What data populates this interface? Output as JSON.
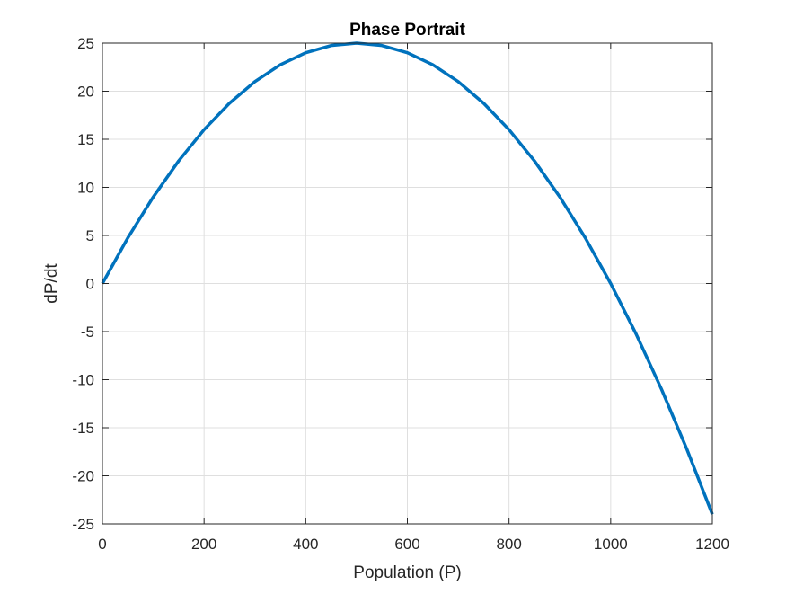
{
  "chart_data": {
    "type": "line",
    "title": "Phase Portrait",
    "xlabel": "Population (P)",
    "ylabel": "dP/dt",
    "xlim": [
      0,
      1200
    ],
    "ylim": [
      -25,
      25
    ],
    "x_ticks": [
      0,
      200,
      400,
      600,
      800,
      1000,
      1200
    ],
    "y_ticks": [
      -25,
      -20,
      -15,
      -10,
      -5,
      0,
      5,
      10,
      15,
      20,
      25
    ],
    "x_tick_labels": [
      "0",
      "200",
      "400",
      "600",
      "800",
      "1000",
      "1200"
    ],
    "y_tick_labels": [
      "-25",
      "-20",
      "-15",
      "-10",
      "-5",
      "0",
      "5",
      "10",
      "15",
      "20",
      "25"
    ],
    "grid": true,
    "series": [
      {
        "color": "#0072BD",
        "x": [
          0,
          50,
          100,
          150,
          200,
          250,
          300,
          350,
          400,
          450,
          500,
          550,
          600,
          650,
          700,
          750,
          800,
          850,
          900,
          950,
          1000,
          1050,
          1100,
          1150,
          1200
        ],
        "y": [
          0,
          4.75,
          9,
          12.75,
          16,
          18.75,
          21,
          22.75,
          24,
          24.75,
          25,
          24.75,
          24,
          22.75,
          21,
          18.75,
          16,
          12.75,
          9,
          4.75,
          0,
          -5.25,
          -11,
          -17.25,
          -24
        ]
      }
    ]
  }
}
